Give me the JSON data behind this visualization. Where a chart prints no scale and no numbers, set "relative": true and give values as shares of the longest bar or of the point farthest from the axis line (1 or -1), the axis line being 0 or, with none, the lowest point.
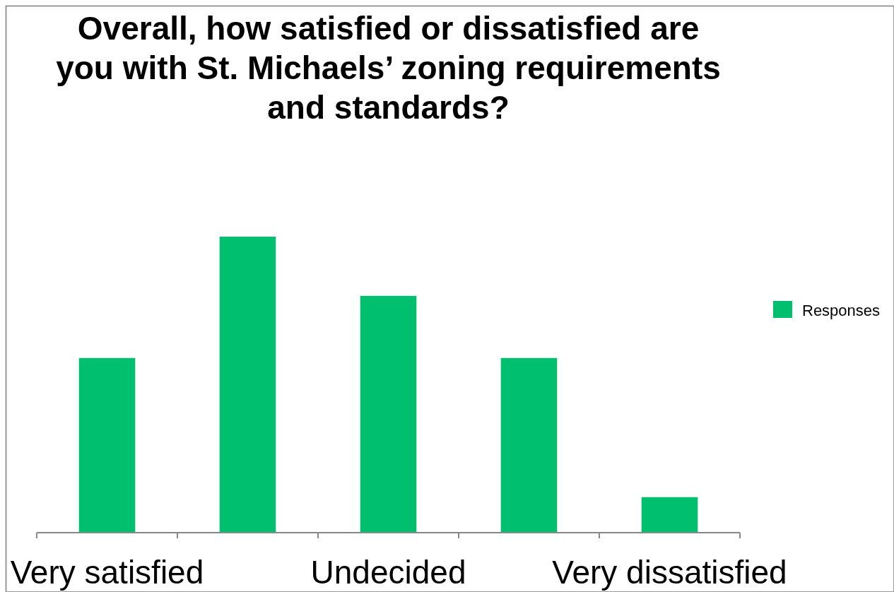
{
  "chart_data": {
    "type": "bar",
    "title": "Overall, how satisfied or dissatisfied are you with St. Michaels’ zoning requirements and standards?",
    "categories": [
      "Very satisfied",
      null,
      "Undecided",
      null,
      "Very dissatisfied"
    ],
    "series": [
      {
        "name": "Responses",
        "color": "#00bf6f",
        "values": [
          0.59,
          1,
          0.8,
          0.59,
          0.12
        ]
      }
    ],
    "relative": true,
    "legend": "right"
  }
}
